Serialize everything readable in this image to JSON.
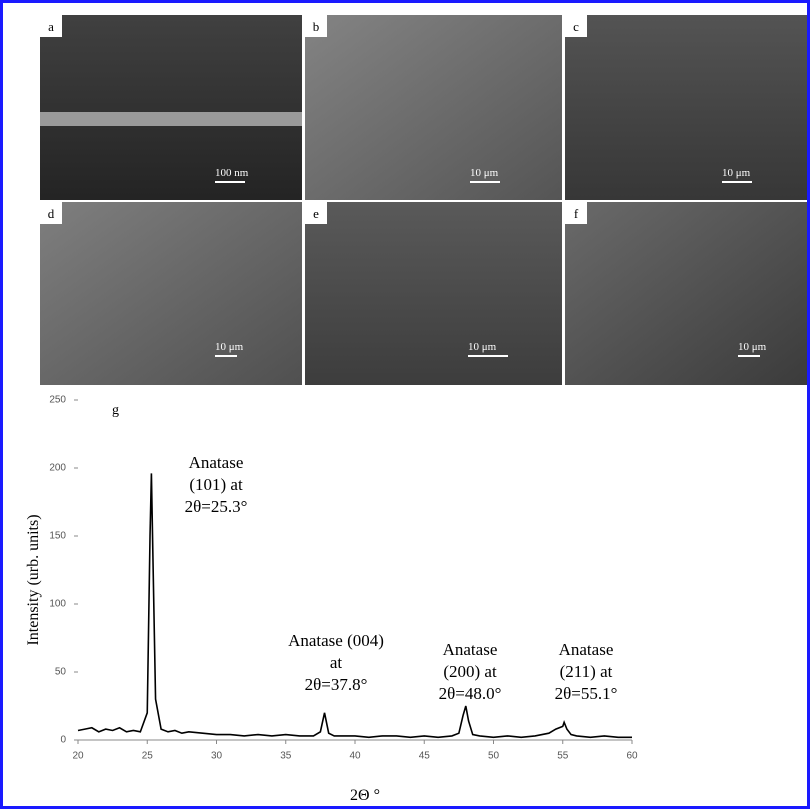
{
  "panels": [
    {
      "label": "a",
      "scale": "100 nm"
    },
    {
      "label": "b",
      "scale": "10 μm"
    },
    {
      "label": "c",
      "scale": "10 μm"
    },
    {
      "label": "d",
      "scale": "10 μm"
    },
    {
      "label": "e",
      "scale": "10 μm"
    },
    {
      "label": "f",
      "scale": "10 μm"
    }
  ],
  "chart_data": {
    "type": "line",
    "panel_label": "g",
    "x_label": "2Θ °",
    "y_label": "Intensity (urb. units)",
    "x": [
      20,
      20.5,
      21,
      21.5,
      22,
      22.5,
      23,
      23.5,
      24,
      24.5,
      25,
      25.2,
      25.3,
      25.4,
      25.6,
      26,
      26.5,
      27,
      27.5,
      28,
      29,
      30,
      31,
      32,
      33,
      34,
      35,
      36,
      37,
      37.5,
      37.8,
      38.1,
      38.5,
      39,
      40,
      41,
      42,
      43,
      44,
      45,
      46,
      47,
      47.5,
      47.8,
      48,
      48.2,
      48.5,
      49,
      50,
      51,
      52,
      53,
      54,
      54.5,
      55,
      55.1,
      55.3,
      55.6,
      56,
      57,
      58,
      59,
      60
    ],
    "values": [
      7,
      8,
      9,
      6,
      8,
      7,
      9,
      6,
      7,
      6,
      20,
      150,
      196,
      140,
      30,
      8,
      6,
      7,
      5,
      6,
      5,
      4,
      4,
      3,
      4,
      3,
      4,
      3,
      3,
      6,
      20,
      5,
      3,
      3,
      3,
      2,
      3,
      3,
      2,
      3,
      2,
      3,
      5,
      18,
      25,
      14,
      4,
      3,
      2,
      3,
      2,
      3,
      5,
      8,
      10,
      13,
      8,
      4,
      3,
      2,
      3,
      2,
      2
    ],
    "color": "#000000",
    "xlim": [
      20,
      60
    ],
    "xticks": [
      20,
      25,
      30,
      35,
      40,
      45,
      50,
      55,
      60
    ],
    "ylim": [
      0,
      250
    ],
    "yticks": [
      0,
      50,
      100,
      150,
      200,
      250
    ],
    "annotations": [
      {
        "lines": [
          "Anatase",
          "(101) at",
          "2θ=25.3°"
        ]
      },
      {
        "lines": [
          "Anatase (004)",
          "at",
          "2θ=37.8°"
        ]
      },
      {
        "lines": [
          "Anatase",
          "(200) at",
          "2θ=48.0°"
        ]
      },
      {
        "lines": [
          "Anatase",
          "(211) at",
          "2θ=55.1°"
        ]
      }
    ]
  }
}
